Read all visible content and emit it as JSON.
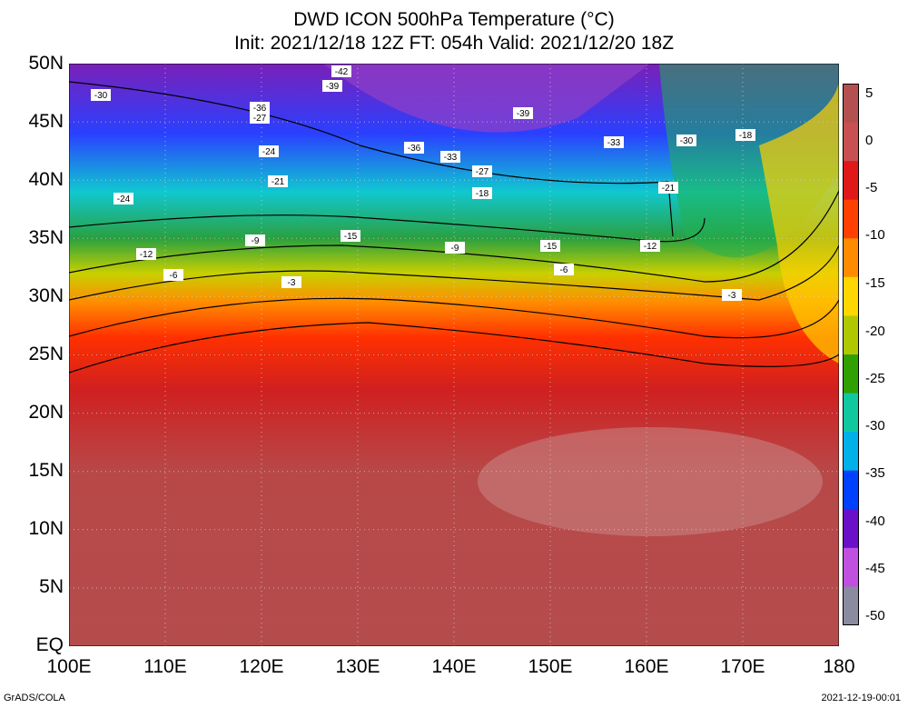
{
  "title": {
    "line1": "DWD ICON 500hPa Temperature (°C)",
    "line2": "Init: 2021/12/18 12Z  FT: 054h  Valid: 2021/12/20 18Z"
  },
  "axes": {
    "lat_labels": [
      "50N",
      "45N",
      "40N",
      "35N",
      "30N",
      "25N",
      "20N",
      "15N",
      "10N",
      "5N",
      "EQ"
    ],
    "lon_labels": [
      "100E",
      "110E",
      "120E",
      "130E",
      "140E",
      "150E",
      "160E",
      "170E",
      "180"
    ]
  },
  "colorbar": {
    "labels": [
      "5",
      "0",
      "-5",
      "-10",
      "-15",
      "-20",
      "-25",
      "-30",
      "-35",
      "-40",
      "-45",
      "-50"
    ],
    "colors": [
      "#b45050",
      "#c85050",
      "#e01818",
      "#ff4000",
      "#ff8c00",
      "#ffd700",
      "#b0c800",
      "#30a000",
      "#10c8a0",
      "#00b0e8",
      "#0040ff",
      "#6a10c8",
      "#c050e0",
      "#8a8aa0"
    ]
  },
  "contour_labels": [
    "-42",
    "-39",
    "-39",
    "-36",
    "-36",
    "-33",
    "-33",
    "-30",
    "-30",
    "-27",
    "-27",
    "-24",
    "-24",
    "-21",
    "-21",
    "-18",
    "-18",
    "-15",
    "-15",
    "-12",
    "-12",
    "-9",
    "-9",
    "-6",
    "-6",
    "-3",
    "-3"
  ],
  "footer": {
    "left": "GrADS/COLA",
    "right": "2021-12-19-00:01"
  }
}
